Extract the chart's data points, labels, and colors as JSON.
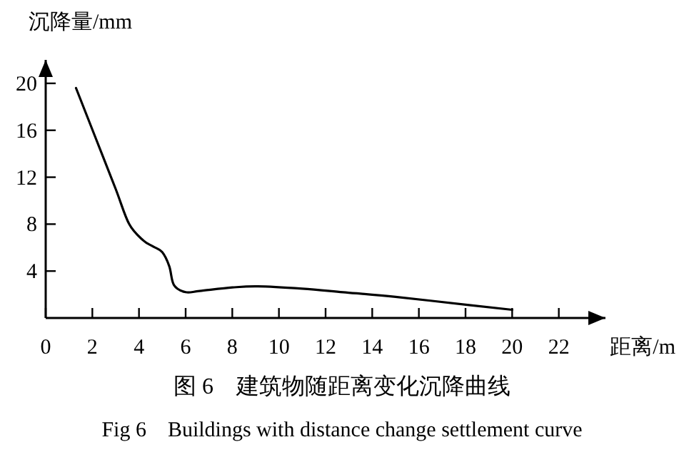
{
  "chart_data": {
    "type": "line",
    "title": "图 6　建筑物随距离变化沉降曲线",
    "subtitle": "Fig 6　Buildings with distance change settlement curve",
    "xlabel": "距离/m",
    "ylabel": "沉降量/mm",
    "xlim": [
      0,
      24
    ],
    "ylim": [
      0,
      22
    ],
    "xticks": [
      0,
      2,
      4,
      6,
      8,
      10,
      12,
      14,
      16,
      18,
      20,
      22
    ],
    "yticks": [
      4,
      8,
      12,
      16,
      20
    ],
    "grid": false,
    "marker": "none",
    "line_style": "solid",
    "series": [
      {
        "color": "#000000",
        "x": [
          1.3,
          2.15,
          3.0,
          3.58,
          4.19,
          4.6,
          5.0,
          5.3,
          5.5,
          6.0,
          6.6,
          8.0,
          9.1,
          11.0,
          12.75,
          15.0,
          18.15,
          20.0
        ],
        "values": [
          19.6,
          15.3,
          11.0,
          8.0,
          6.6,
          6.1,
          5.6,
          4.4,
          2.8,
          2.2,
          2.3,
          2.6,
          2.7,
          2.5,
          2.2,
          1.8,
          1.1,
          0.7
        ]
      }
    ]
  }
}
